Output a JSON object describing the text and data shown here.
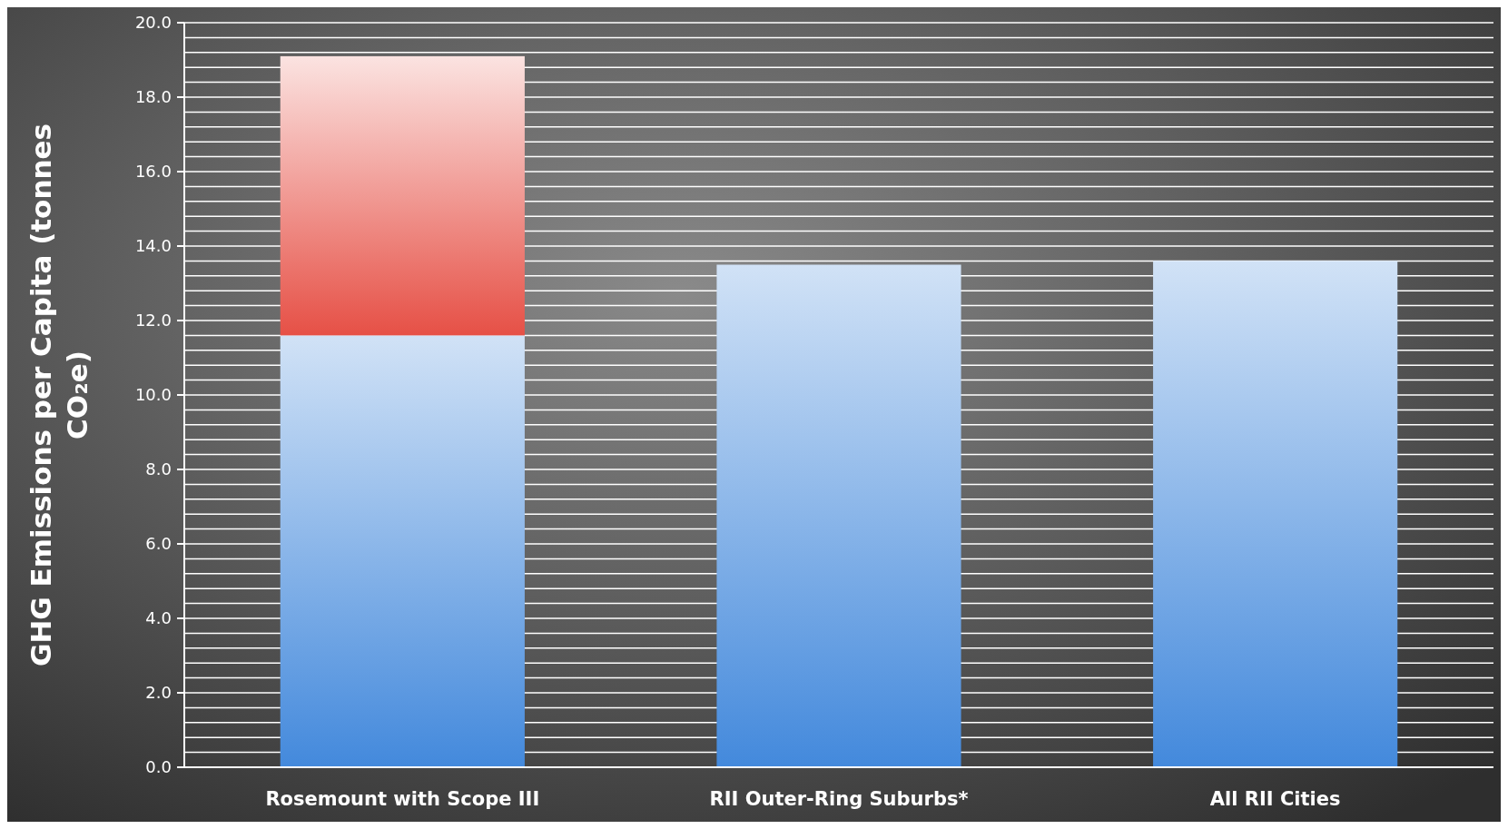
{
  "chart_data": {
    "type": "bar",
    "ylabel": "GHG Emissions per Capita  (tonnes CO₂e)",
    "categories": [
      "Rosemount with Scope III",
      "RII Outer-Ring Suburbs*",
      "All RII Cities"
    ],
    "stacked": true,
    "series": [
      {
        "color": "#78aae6",
        "values": [
          11.6,
          13.5,
          13.6
        ]
      },
      {
        "color": "#ee8780",
        "values": [
          7.5,
          null,
          null
        ]
      }
    ],
    "ylim": [
      0,
      20
    ],
    "yticks": [
      {
        "value": 0,
        "label": "0.0"
      },
      {
        "value": 0.4,
        "label": null
      },
      {
        "value": 0.8,
        "label": null
      },
      {
        "value": 1.2,
        "label": null
      },
      {
        "value": 1.6,
        "label": null
      },
      {
        "value": 2,
        "label": "2.0"
      },
      {
        "value": 2.4,
        "label": null
      },
      {
        "value": 2.8,
        "label": null
      },
      {
        "value": 3.2,
        "label": null
      },
      {
        "value": 3.6,
        "label": null
      },
      {
        "value": 4,
        "label": "4.0"
      },
      {
        "value": 4.4,
        "label": null
      },
      {
        "value": 4.8,
        "label": null
      },
      {
        "value": 5.2,
        "label": null
      },
      {
        "value": 5.6,
        "label": null
      },
      {
        "value": 6,
        "label": "6.0"
      },
      {
        "value": 6.4,
        "label": null
      },
      {
        "value": 6.8,
        "label": null
      },
      {
        "value": 7.2,
        "label": null
      },
      {
        "value": 7.6,
        "label": null
      },
      {
        "value": 8,
        "label": "8.0"
      },
      {
        "value": 8.4,
        "label": null
      },
      {
        "value": 8.8,
        "label": null
      },
      {
        "value": 9.2,
        "label": null
      },
      {
        "value": 9.6,
        "label": null
      },
      {
        "value": 10,
        "label": "10.0"
      },
      {
        "value": 10.4,
        "label": null
      },
      {
        "value": 10.8,
        "label": null
      },
      {
        "value": 11.2,
        "label": null
      },
      {
        "value": 11.6,
        "label": null
      },
      {
        "value": 12,
        "label": "12.0"
      },
      {
        "value": 12.4,
        "label": null
      },
      {
        "value": 12.8,
        "label": null
      },
      {
        "value": 13.2,
        "label": null
      },
      {
        "value": 13.6,
        "label": null
      },
      {
        "value": 14,
        "label": "14.0"
      },
      {
        "value": 14.4,
        "label": null
      },
      {
        "value": 14.8,
        "label": null
      },
      {
        "value": 15.2,
        "label": null
      },
      {
        "value": 15.6,
        "label": null
      },
      {
        "value": 16,
        "label": "16.0"
      },
      {
        "value": 16.4,
        "label": null
      },
      {
        "value": 16.8,
        "label": null
      },
      {
        "value": 17.2,
        "label": null
      },
      {
        "value": 17.6,
        "label": null
      },
      {
        "value": 18,
        "label": "18.0"
      },
      {
        "value": 18.4,
        "label": null
      },
      {
        "value": 18.8,
        "label": null
      },
      {
        "value": 19.2,
        "label": null
      },
      {
        "value": 19.6,
        "label": null
      },
      {
        "value": 20,
        "label": "20.0"
      }
    ],
    "grid": true
  }
}
